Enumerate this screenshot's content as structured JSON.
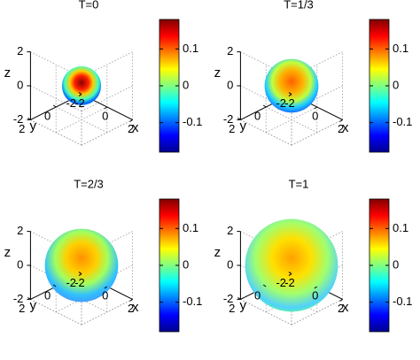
{
  "chart_data": [
    {
      "type": "sphere",
      "title": "T=0",
      "xlabel": "x",
      "ylabel": "y",
      "zlabel": "z",
      "xlim": [
        -2,
        2
      ],
      "ylim": [
        -2,
        2
      ],
      "zlim": [
        -2,
        2
      ],
      "xticks": [
        -2,
        0,
        2
      ],
      "yticks": [
        -2,
        0,
        2
      ],
      "zticks": [
        -2,
        0,
        2
      ],
      "radius": 0.8,
      "colormap": "jet",
      "clim": [
        -0.18,
        0.18
      ],
      "cticks": [
        -0.1,
        0,
        0.1
      ]
    },
    {
      "type": "sphere",
      "title": "T=1/3",
      "xlabel": "x",
      "ylabel": "y",
      "zlabel": "z",
      "xlim": [
        -2,
        2
      ],
      "ylim": [
        -2,
        2
      ],
      "zlim": [
        -2,
        2
      ],
      "xticks": [
        -2,
        0,
        2
      ],
      "yticks": [
        -2,
        0,
        2
      ],
      "zticks": [
        -2,
        0,
        2
      ],
      "radius": 1.1,
      "colormap": "jet",
      "clim": [
        -0.18,
        0.18
      ],
      "cticks": [
        -0.1,
        0,
        0.1
      ]
    },
    {
      "type": "sphere",
      "title": "T=2/3",
      "xlabel": "x",
      "ylabel": "y",
      "zlabel": "z",
      "xlim": [
        -2,
        2
      ],
      "ylim": [
        -2,
        2
      ],
      "zlim": [
        -2,
        2
      ],
      "xticks": [
        -2,
        0,
        2
      ],
      "yticks": [
        -2,
        0,
        2
      ],
      "zticks": [
        -2,
        0,
        2
      ],
      "radius": 1.5,
      "colormap": "jet",
      "clim": [
        -0.18,
        0.18
      ],
      "cticks": [
        -0.1,
        0,
        0.1
      ]
    },
    {
      "type": "sphere",
      "title": "T=1",
      "xlabel": "x",
      "ylabel": "y",
      "zlabel": "z",
      "xlim": [
        -2,
        2
      ],
      "ylim": [
        -2,
        2
      ],
      "zlim": [
        -2,
        2
      ],
      "xticks": [
        -2,
        0,
        2
      ],
      "yticks": [
        -2,
        0,
        2
      ],
      "zticks": [
        -2,
        0,
        2
      ],
      "radius": 1.9,
      "colormap": "jet",
      "clim": [
        -0.18,
        0.18
      ],
      "cticks": [
        -0.1,
        0,
        0.1
      ]
    }
  ]
}
